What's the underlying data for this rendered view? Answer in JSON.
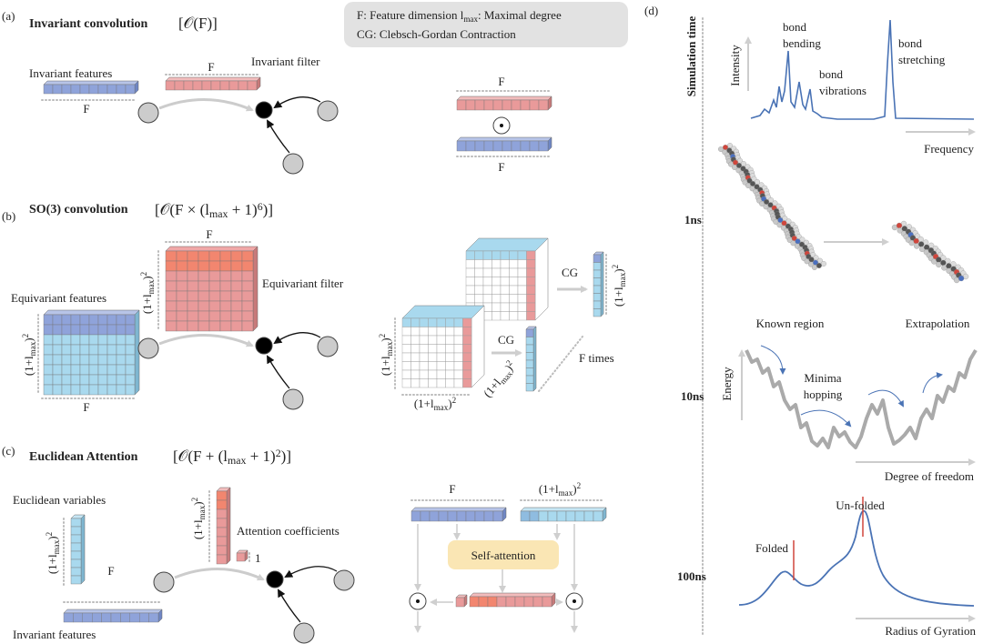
{
  "panels": {
    "a": {
      "tag": "(a)",
      "title": "Invariant convolution",
      "complexity": "[𝒪(F)]",
      "features_label": "Invariant features",
      "features_dim": "F",
      "filter_label": "Invariant filter",
      "filter_dim": "F",
      "product_top_dim": "F",
      "product_bottom_dim": "F"
    },
    "legend": {
      "line1": [
        {
          "text": "F: Feature dimension   l"
        },
        {
          "text": "max",
          "shift": "sub"
        },
        {
          "text": ": Maximal degree"
        }
      ],
      "line2": "CG: Clebsch-Gordan Contraction"
    },
    "b": {
      "tag": "(b)",
      "title": "SO(3) convolution",
      "complexity": [
        {
          "text": "[𝒪(F × (l"
        },
        {
          "text": "max",
          "shift": "sub"
        },
        {
          "text": " + 1)"
        },
        {
          "text": "6",
          "shift": "sup"
        },
        {
          "text": ")]"
        }
      ],
      "filter_dim_top": "F",
      "filter_dim_side": [
        {
          "text": "(1+l"
        },
        {
          "text": "max",
          "shift": "sub"
        },
        {
          "text": ")"
        },
        {
          "text": "2",
          "shift": "sup"
        }
      ],
      "filter_label": "Equivariant filter",
      "features_label": "Equivariant features",
      "features_dim_side": [
        {
          "text": "(1+l"
        },
        {
          "text": "max",
          "shift": "sub"
        },
        {
          "text": ")"
        },
        {
          "text": "2",
          "shift": "sup"
        }
      ],
      "features_dim_bottom": "F",
      "cube_dim_side": [
        {
          "text": "(1+l"
        },
        {
          "text": "max",
          "shift": "sub"
        },
        {
          "text": ")"
        },
        {
          "text": "2",
          "shift": "sup"
        }
      ],
      "cube_dim_bottom": [
        {
          "text": "(1+l"
        },
        {
          "text": "max",
          "shift": "sub"
        },
        {
          "text": ")"
        },
        {
          "text": "2",
          "shift": "sup"
        }
      ],
      "cg_lower": "CG",
      "vector_lower_dim": [
        {
          "text": "(1+l"
        },
        {
          "text": "max",
          "shift": "sub"
        },
        {
          "text": ")"
        },
        {
          "text": "2",
          "shift": "sup"
        }
      ],
      "cg_upper": "CG",
      "vector_upper_dim": [
        {
          "text": "(1+l"
        },
        {
          "text": "max",
          "shift": "sub"
        },
        {
          "text": ")"
        },
        {
          "text": "2",
          "shift": "sup"
        }
      ],
      "repeat_label": "F times"
    },
    "c": {
      "tag": "(c)",
      "title": "Euclidean Attention",
      "complexity": [
        {
          "text": "[𝒪(F + (l"
        },
        {
          "text": "max",
          "shift": "sub"
        },
        {
          "text": " + 1)"
        },
        {
          "text": "2",
          "shift": "sup"
        },
        {
          "text": ")]"
        }
      ],
      "euclid_label": "Euclidean variables",
      "euclid_dim": [
        {
          "text": "(1+l"
        },
        {
          "text": "max",
          "shift": "sub"
        },
        {
          "text": ")"
        },
        {
          "text": "2",
          "shift": "sup"
        }
      ],
      "inv_dim": "F",
      "inv_label": "Invariant features",
      "attn_dim": [
        {
          "text": "(1+l"
        },
        {
          "text": "max",
          "shift": "sub"
        },
        {
          "text": ")"
        },
        {
          "text": "2",
          "shift": "sup"
        }
      ],
      "attn_label": "Attention coefficients",
      "attn_one": "1",
      "head_f_dim": "F",
      "head_l_dim": [
        {
          "text": "(1+l"
        },
        {
          "text": "max",
          "shift": "sub"
        },
        {
          "text": ")"
        },
        {
          "text": "2",
          "shift": "sup"
        }
      ],
      "self_attention": "Self-attention"
    },
    "d": {
      "tag": "(d)",
      "time_axis": "Simulation time",
      "times": [
        "1ns",
        "10ns",
        "100ns"
      ],
      "spectrum": {
        "y_label": "Intensity",
        "x_label": "Frequency",
        "peaks": [
          [
            "bond",
            "bending"
          ],
          [
            "bond",
            "vibrations"
          ],
          [
            "bond",
            "stretching"
          ]
        ]
      },
      "md": {
        "left": "Known region",
        "right": "Extrapolation"
      },
      "energy": {
        "y_label": "Energy",
        "x_label": "Degree of freedom",
        "annotation": [
          "Minima",
          "hopping"
        ]
      },
      "folding": {
        "x_label": "Radius of Gyration",
        "left": "Folded",
        "right": "Un-folded"
      }
    }
  }
}
